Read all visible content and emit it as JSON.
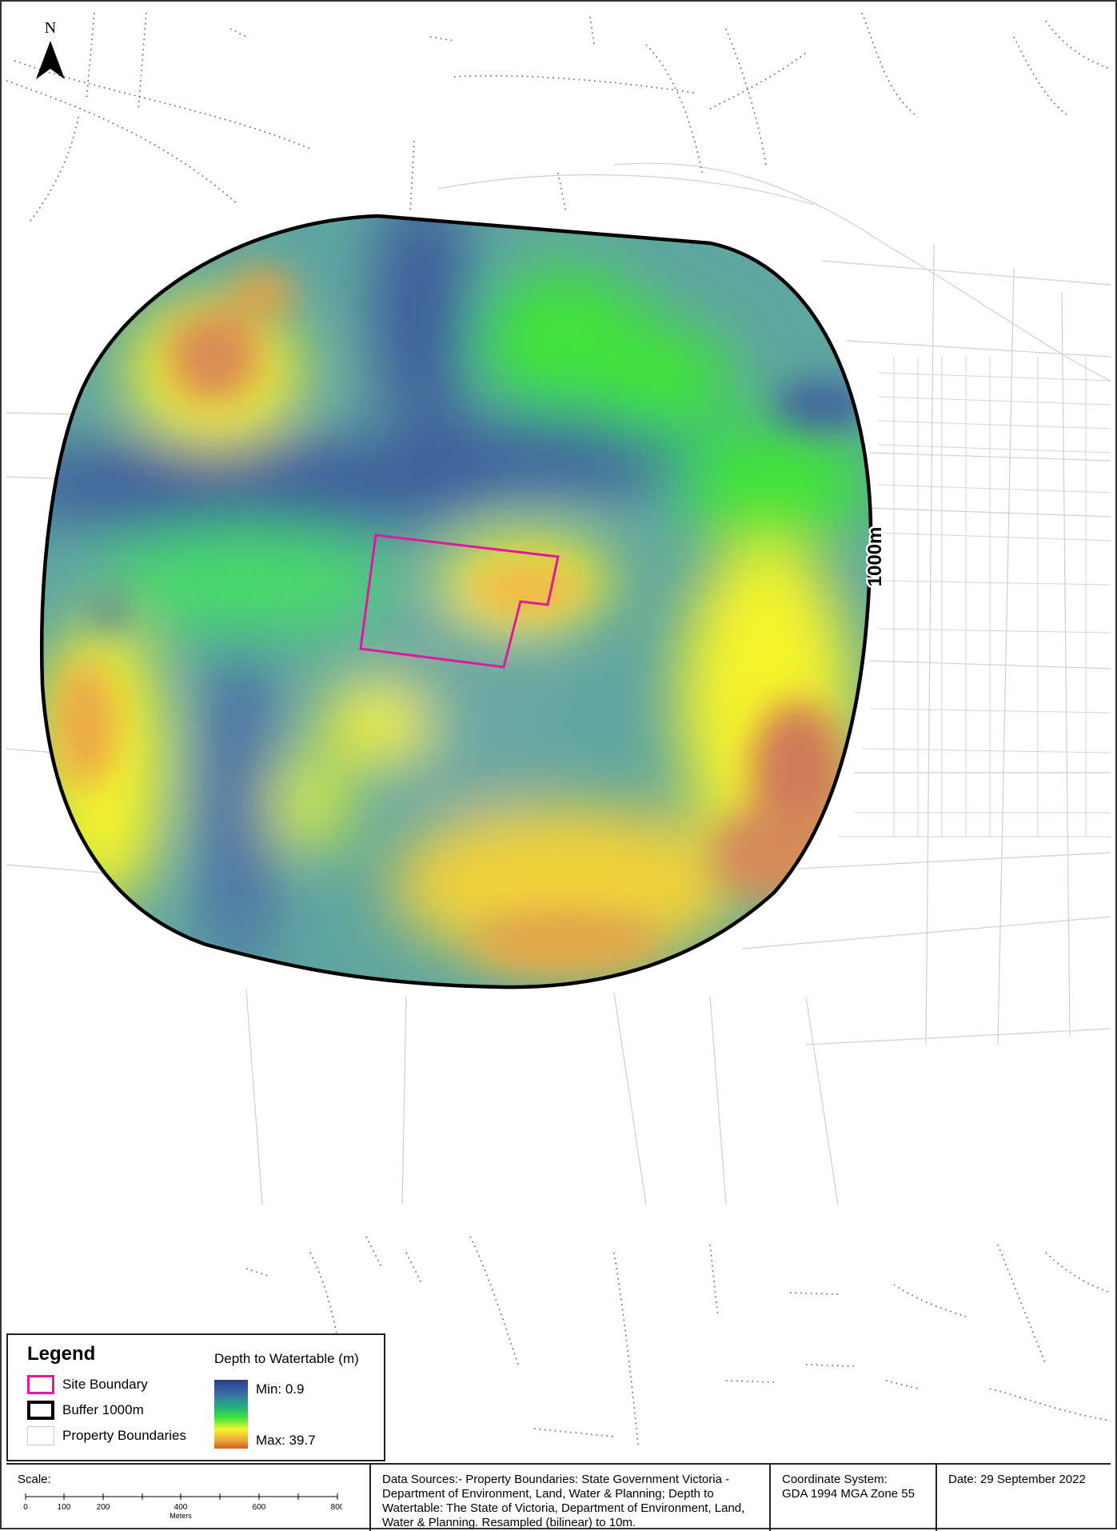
{
  "north_arrow": {
    "label": "N"
  },
  "buffer": {
    "label": "1000m"
  },
  "legend": {
    "title": "Legend",
    "items": [
      {
        "label": "Site Boundary",
        "color": "#e0199b"
      },
      {
        "label": "Buffer 1000m",
        "color": "#000000"
      },
      {
        "label": "Property Boundaries",
        "color": "#c8c8c8"
      }
    ],
    "ramp": {
      "title": "Depth to Watertable (m)",
      "min_label": "Min: 0.9",
      "max_label": "Max: 39.7"
    }
  },
  "scale": {
    "label": "Scale:",
    "ticks": [
      "0",
      "100",
      "200",
      "400",
      "600",
      "800"
    ],
    "units": "Meters"
  },
  "data_sources": "Data Sources:- Property Boundaries:  State Government Victoria - Department of Environment, Land, Water & Planning; Depth to Watertable: The State of Victoria, Department of Environment, Land, Water & Planning. Resampled (bilinear) to 10m.",
  "coordinate_system": {
    "label": "Coordinate System:",
    "value": "GDA 1994 MGA Zone 55"
  },
  "date": "Date: 29 September 2022",
  "colors": {
    "site_boundary": "#e0199b",
    "deep_blue": "#2c3d86",
    "teal": "#5fa6a0",
    "green": "#3fe33a",
    "yellow": "#f6f42a",
    "orange": "#f0b13a",
    "red_brown": "#c7745e"
  }
}
